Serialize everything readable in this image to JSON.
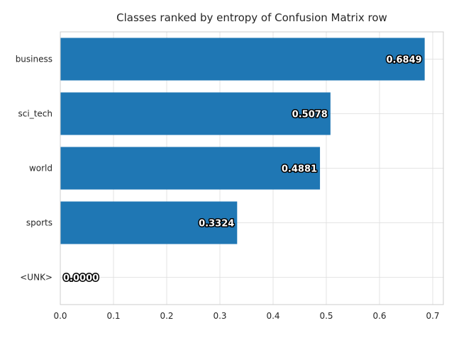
{
  "chart_data": {
    "type": "bar",
    "orientation": "horizontal",
    "title": "Classes ranked by entropy of Confusion Matrix row",
    "categories": [
      "business",
      "sci_tech",
      "world",
      "sports",
      "<UNK>"
    ],
    "values": [
      0.6849,
      0.5078,
      0.4881,
      0.3324,
      0.0
    ],
    "value_labels": [
      "0.6849",
      "0.5078",
      "0.4881",
      "0.3324",
      "0.0000"
    ],
    "xlim": [
      0,
      0.72
    ],
    "xticks": [
      0,
      0.1,
      0.2,
      0.3,
      0.4,
      0.5,
      0.6,
      0.7
    ],
    "xtick_labels": [
      "0.0",
      "0.1",
      "0.2",
      "0.3",
      "0.4",
      "0.5",
      "0.6",
      "0.7"
    ],
    "xlabel": "",
    "ylabel": "",
    "grid": true,
    "bar_color": "#1f77b4"
  }
}
